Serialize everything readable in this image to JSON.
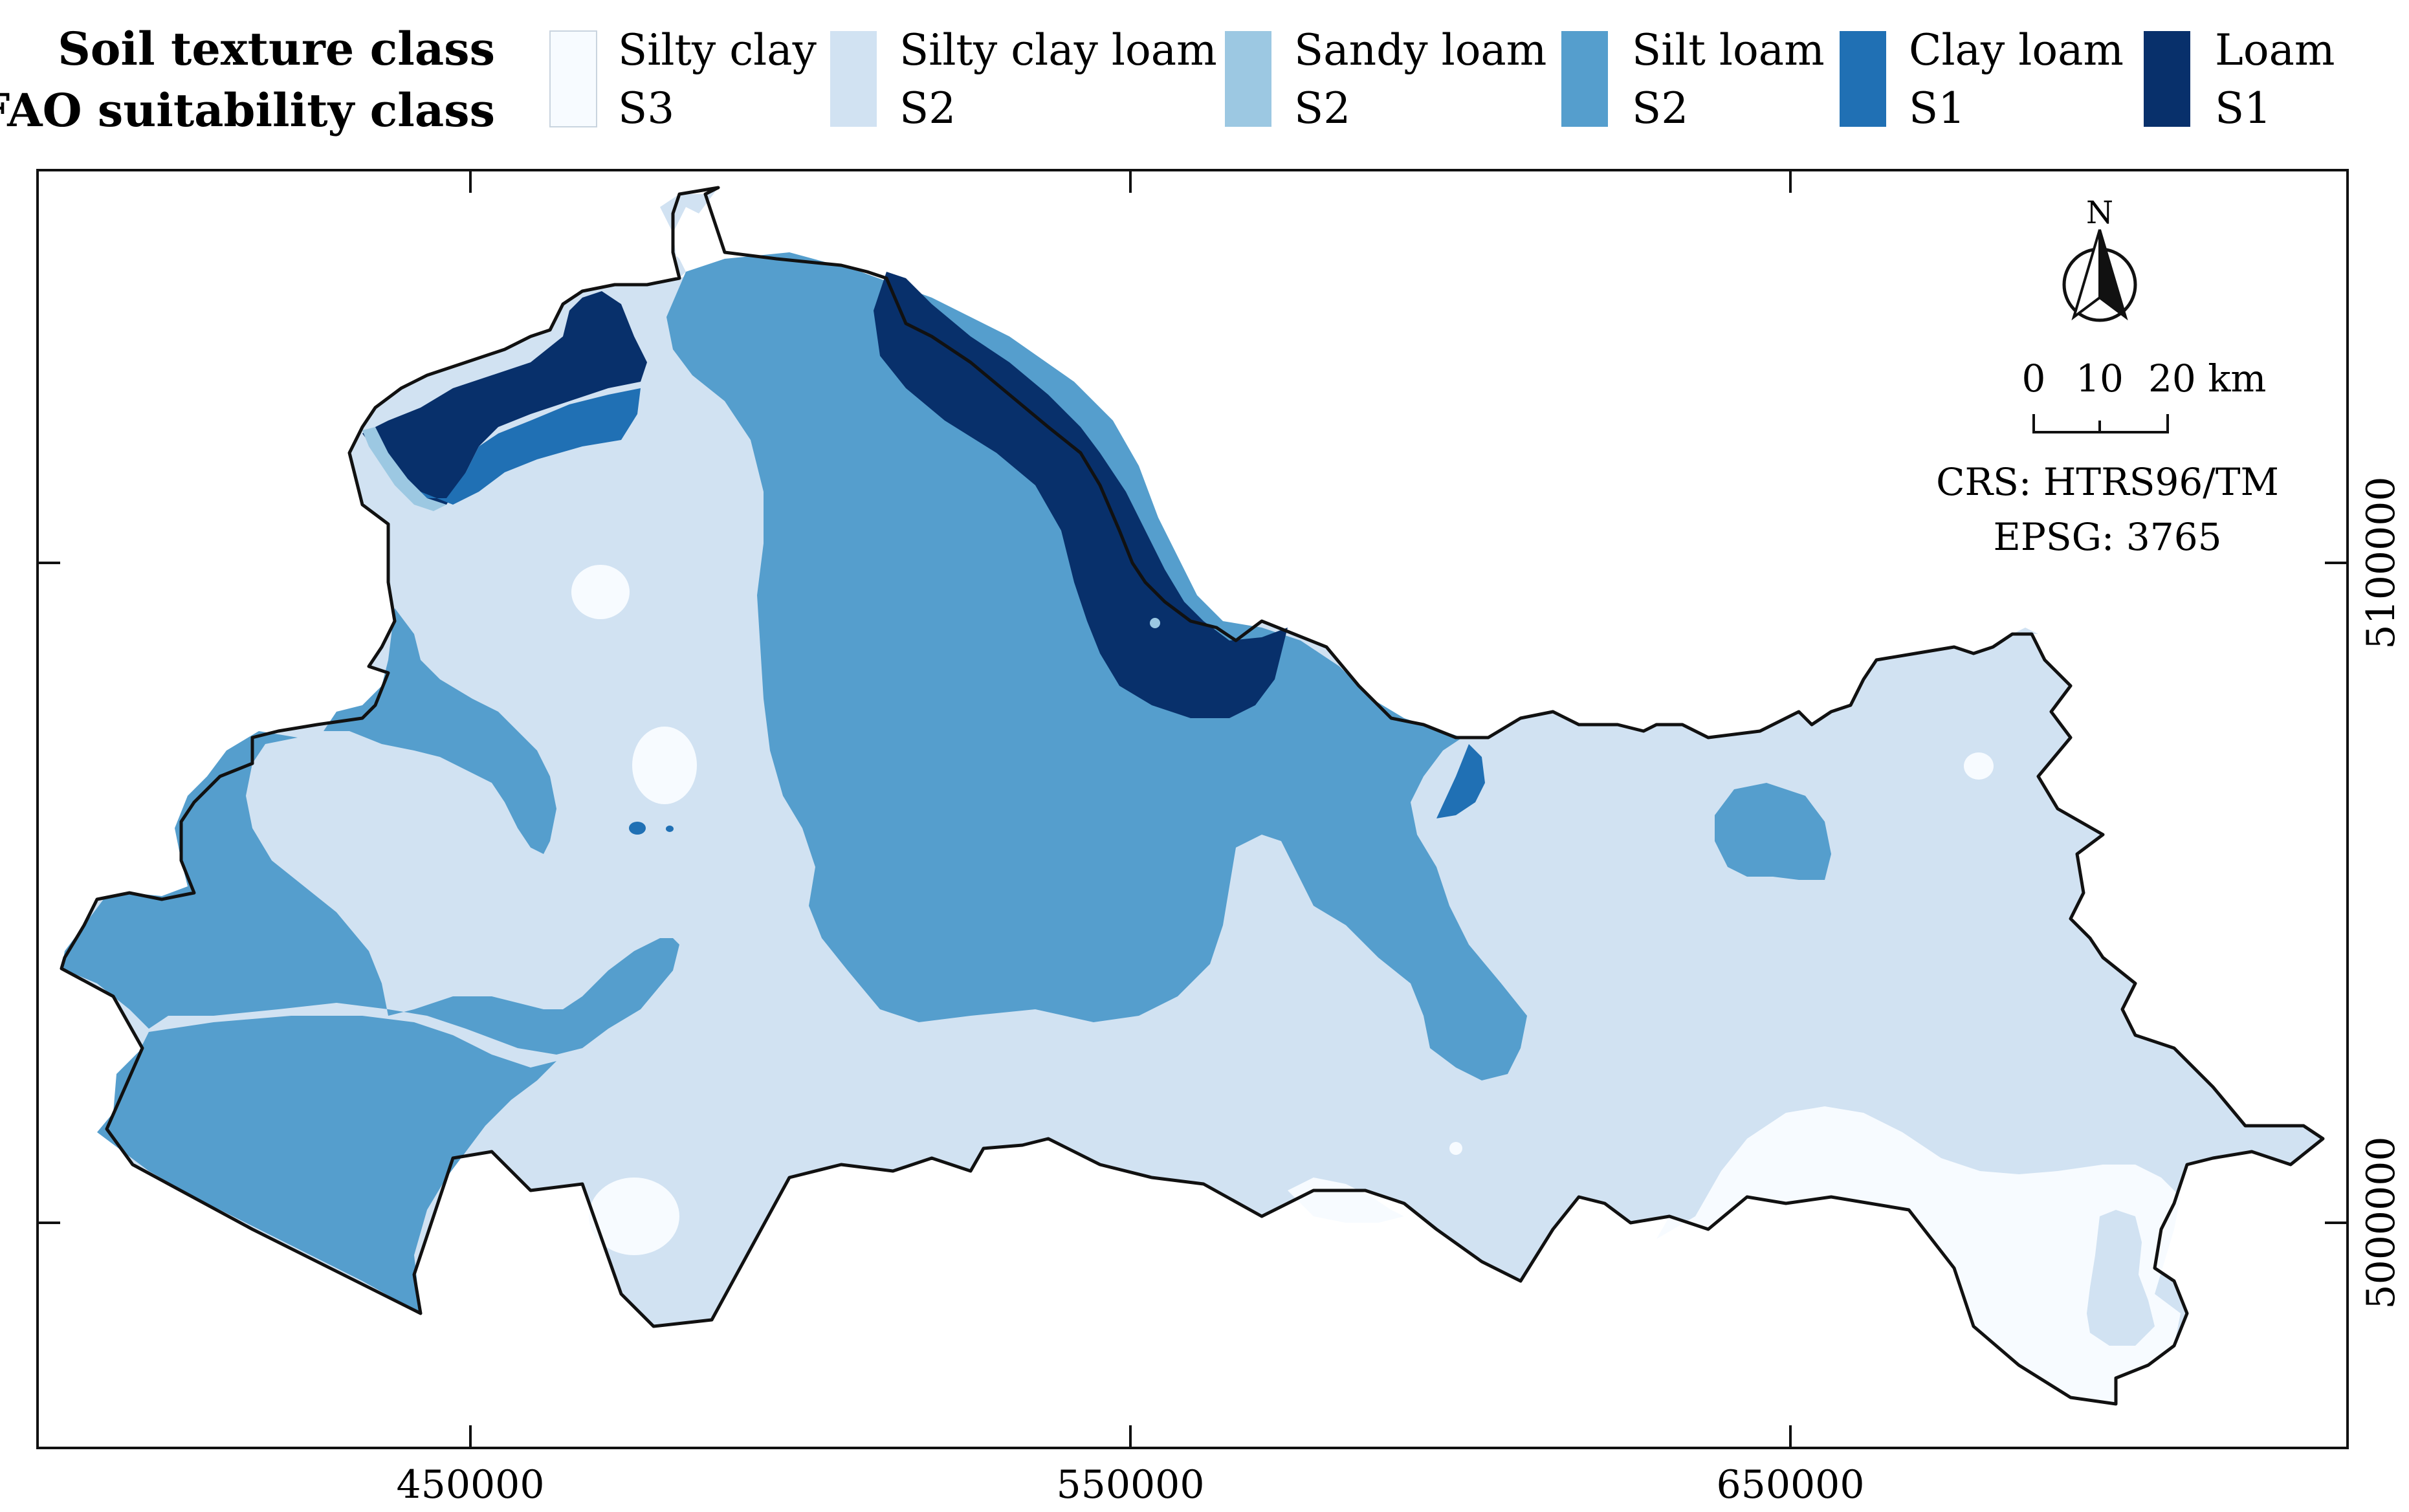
{
  "legend": {
    "header_texture": "Soil texture class",
    "header_fao": "FAO suitability class",
    "items": [
      {
        "texture": "Silty clay",
        "fao": "S3",
        "color": "#f7fbff"
      },
      {
        "texture": "Silty clay loam",
        "fao": "S2",
        "color": "#d1e2f2"
      },
      {
        "texture": "Sandy loam",
        "fao": "S2",
        "color": "#9cc8e2"
      },
      {
        "texture": "Silt loam",
        "fao": "S2",
        "color": "#559ecd"
      },
      {
        "texture": "Clay loam",
        "fao": "S1",
        "color": "#2070b4"
      },
      {
        "texture": "Loam",
        "fao": "S1",
        "color": "#08306b"
      }
    ]
  },
  "axes": {
    "x_ticks": [
      "450000",
      "550000",
      "650000"
    ],
    "y_ticks": [
      "5100000",
      "5000000"
    ]
  },
  "north_arrow": {
    "label": "N",
    "icon": "north-arrow-icon"
  },
  "scale_bar": {
    "label_0": "0",
    "label_10": "10",
    "label_20": "20 km"
  },
  "crs": {
    "line1": "CRS: HTRS96/TM",
    "line2": "EPSG: 3765"
  }
}
